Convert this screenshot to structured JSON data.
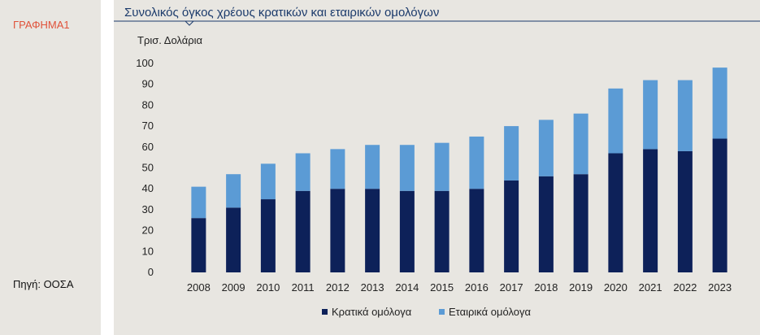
{
  "sidebar": {
    "figure_label": "ΓΡΑΦΗΜΑ1",
    "source": "Πηγή: ΟΟΣΑ"
  },
  "colors": {
    "government": "#0d2159",
    "corporate": "#5b9bd5",
    "title": "#1b3a6b",
    "label_red": "#e0523a",
    "background": "#e8e6e1"
  },
  "chart_data": {
    "type": "bar",
    "stacked": true,
    "title": "Συνολικός όγκος χρέους κρατικών και εταιρικών ομολόγων",
    "ylabel": "Τρισ. Δολάρια",
    "xlabel": "",
    "ylim": [
      0,
      100
    ],
    "yticks": [
      0,
      10,
      20,
      30,
      40,
      50,
      60,
      70,
      80,
      90,
      100
    ],
    "categories": [
      "2008",
      "2009",
      "2010",
      "2011",
      "2012",
      "2013",
      "2014",
      "2015",
      "2016",
      "2017",
      "2018",
      "2019",
      "2020",
      "2021",
      "2022",
      "2023"
    ],
    "series": [
      {
        "name": "Κρατικά ομόλογα",
        "color": "#0d2159",
        "values": [
          26,
          31,
          35,
          39,
          40,
          40,
          39,
          39,
          40,
          44,
          46,
          47,
          57,
          59,
          58,
          64
        ]
      },
      {
        "name": "Εταιρικά ομόλογα",
        "color": "#5b9bd5",
        "values": [
          15,
          16,
          17,
          18,
          19,
          21,
          22,
          23,
          25,
          26,
          27,
          29,
          31,
          33,
          34,
          34
        ]
      }
    ],
    "totals": [
      41,
      47,
      52,
      57,
      59,
      61,
      61,
      62,
      65,
      70,
      73,
      76,
      88,
      92,
      92,
      98
    ],
    "grid": false,
    "legend": "bottom"
  }
}
